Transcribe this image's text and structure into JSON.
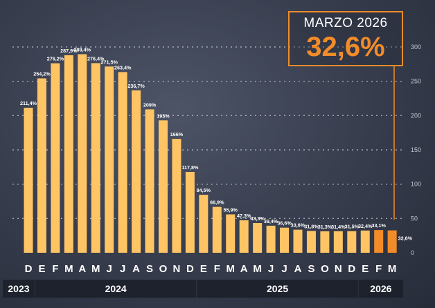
{
  "highlight": {
    "title": "MARZO 2026",
    "value": "32,6%"
  },
  "colors": {
    "bar": "#ffc565",
    "bar_highlight": "#f28c28",
    "background": "#363c4c",
    "text": "#ffffff"
  },
  "chart_data": {
    "type": "bar",
    "title": "",
    "xlabel": "",
    "ylabel": "",
    "ylim": [
      0,
      300
    ],
    "y_ticks": [
      "0",
      "50",
      "100",
      "150",
      "200",
      "250",
      "300"
    ],
    "grid": true,
    "categories": [
      "D",
      "E",
      "F",
      "M",
      "A",
      "M",
      "J",
      "J",
      "A",
      "S",
      "O",
      "N",
      "D",
      "E",
      "F",
      "M",
      "A",
      "M",
      "J",
      "J",
      "A",
      "S",
      "O",
      "N",
      "D",
      "E",
      "F",
      "M"
    ],
    "months": [
      "D",
      "E",
      "F",
      "M",
      "A",
      "M",
      "J",
      "J",
      "A",
      "S",
      "O",
      "N",
      "D",
      "E",
      "F",
      "M",
      "A",
      "M",
      "J",
      "J",
      "A",
      "S",
      "O",
      "N",
      "D",
      "E",
      "F",
      "M"
    ],
    "values": [
      211.4,
      254.2,
      276.2,
      287.9,
      289.4,
      276.4,
      271.5,
      263.4,
      236.7,
      209,
      193,
      166,
      117.8,
      84.5,
      66.9,
      55.9,
      47.3,
      43.3,
      39.4,
      36.6,
      33.6,
      31.8,
      31.3,
      31.4,
      31.5,
      32.4,
      33.1,
      32.6
    ],
    "data_labels": [
      "211,4%",
      "254,2%",
      "276,2%",
      "287,9%",
      "289,4%",
      "276,4%",
      "271,5%",
      "263,4%",
      "236,7%",
      "209%",
      "193%",
      "166%",
      "117,8%",
      "84,5%",
      "66,9%",
      "55,9%",
      "47,3%",
      "43,3%",
      "39,4%",
      "36,6%",
      "33,6%",
      "31,8%",
      "31,3%",
      "31,4%",
      "31,5%",
      "32,4%",
      "33,1%",
      "32,6%"
    ],
    "highlighted": [
      false,
      false,
      false,
      false,
      false,
      false,
      false,
      false,
      false,
      false,
      false,
      false,
      false,
      false,
      false,
      false,
      false,
      false,
      false,
      false,
      false,
      false,
      false,
      false,
      false,
      false,
      true,
      true
    ],
    "years": [
      {
        "label": "2023",
        "months": 1
      },
      {
        "label": "2024",
        "months": 12
      },
      {
        "label": "2025",
        "months": 12
      },
      {
        "label": "2026",
        "months": 3
      }
    ]
  }
}
